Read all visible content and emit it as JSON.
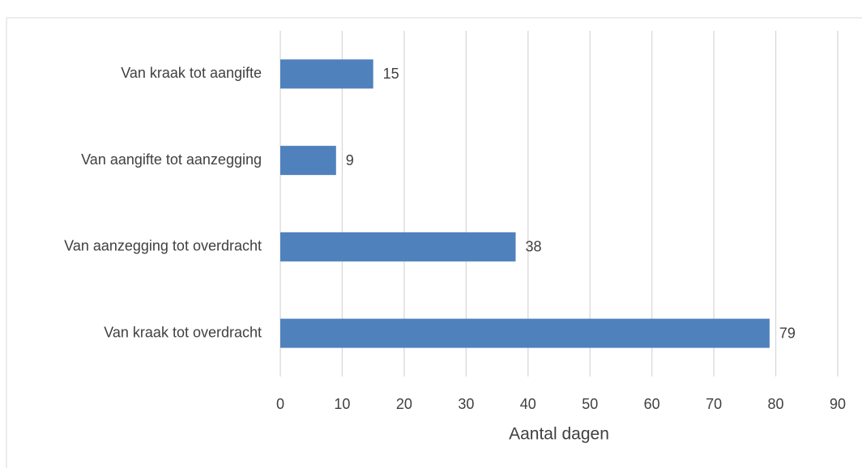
{
  "chart_data": {
    "type": "bar",
    "orientation": "horizontal",
    "categories": [
      "Van kraak tot aangifte",
      "Van aangifte tot aanzegging",
      "Van aanzegging tot overdracht",
      "Van kraak tot overdracht"
    ],
    "values": [
      15,
      9,
      38,
      79
    ],
    "color": "#4f81bd",
    "xlabel": "Aantal dagen",
    "xlim": [
      0,
      90
    ],
    "xticks": [
      0,
      10,
      20,
      30,
      40,
      50,
      60,
      70,
      80,
      90
    ],
    "grid": true
  }
}
